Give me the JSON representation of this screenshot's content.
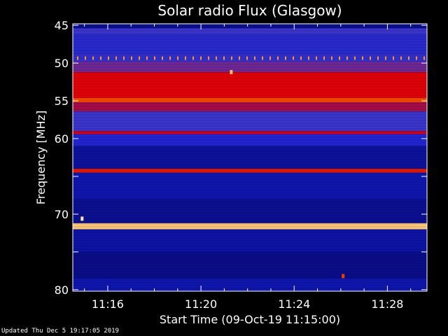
{
  "chart_data": {
    "type": "heatmap",
    "title": "Solar radio Flux (Glasgow)",
    "xlabel": "Start Time (09-Oct-19 11:15:00)",
    "ylabel": "Frequency [MHz]",
    "x_ticks": [
      "11:16",
      "11:20",
      "11:24",
      "11:28"
    ],
    "x_tick_minutes": [
      1,
      5,
      9,
      13
    ],
    "x_range_minutes": [
      -0.5,
      14.7
    ],
    "y_ticks": [
      45,
      50,
      55,
      60,
      65,
      70,
      75,
      80
    ],
    "y_tick_labels": [
      "45",
      "50",
      "55",
      "60",
      "",
      "70",
      "",
      "80"
    ],
    "y_range_mhz": [
      44.8,
      80.2
    ],
    "y_inverted": true,
    "background": "blue",
    "bands": [
      {
        "from": 44.8,
        "to": 45.4,
        "level": 0.15
      },
      {
        "from": 45.4,
        "to": 46.2,
        "level": 0.45
      },
      {
        "from": 46.2,
        "to": 48.8,
        "level": 0.38
      },
      {
        "from": 48.8,
        "to": 49.8,
        "level": 0.42
      },
      {
        "from": 49.8,
        "to": 51.2,
        "level": 0.55
      },
      {
        "from": 51.2,
        "to": 54.6,
        "level": 0.78
      },
      {
        "from": 54.6,
        "to": 55.2,
        "level": 0.86
      },
      {
        "from": 55.2,
        "to": 56.4,
        "level": 0.62
      },
      {
        "from": 56.4,
        "to": 59.0,
        "level": 0.45
      },
      {
        "from": 59.0,
        "to": 59.4,
        "level": 0.72
      },
      {
        "from": 59.4,
        "to": 61.0,
        "level": 0.35
      },
      {
        "from": 61.0,
        "to": 64.0,
        "level": 0.18
      },
      {
        "from": 64.0,
        "to": 64.5,
        "level": 0.82
      },
      {
        "from": 64.5,
        "to": 68.0,
        "level": 0.22
      },
      {
        "from": 68.0,
        "to": 71.2,
        "level": 0.16
      },
      {
        "from": 71.2,
        "to": 72.0,
        "level": 0.96
      },
      {
        "from": 72.0,
        "to": 75.0,
        "level": 0.2
      },
      {
        "from": 75.0,
        "to": 78.5,
        "level": 0.14
      },
      {
        "from": 78.5,
        "to": 80.2,
        "level": 0.22
      }
    ],
    "spots": [
      {
        "minute": 6.3,
        "mhz": 51.2,
        "level": 0.95
      },
      {
        "minute": -0.1,
        "mhz": 70.6,
        "level": 0.98
      },
      {
        "minute": 11.1,
        "mhz": 78.2,
        "level": 0.85
      }
    ],
    "pulse_rows": [
      {
        "mhz": 49.4,
        "level": 0.92
      }
    ]
  },
  "footer": "Updated Thu Dec  5 19:17:05 2019"
}
